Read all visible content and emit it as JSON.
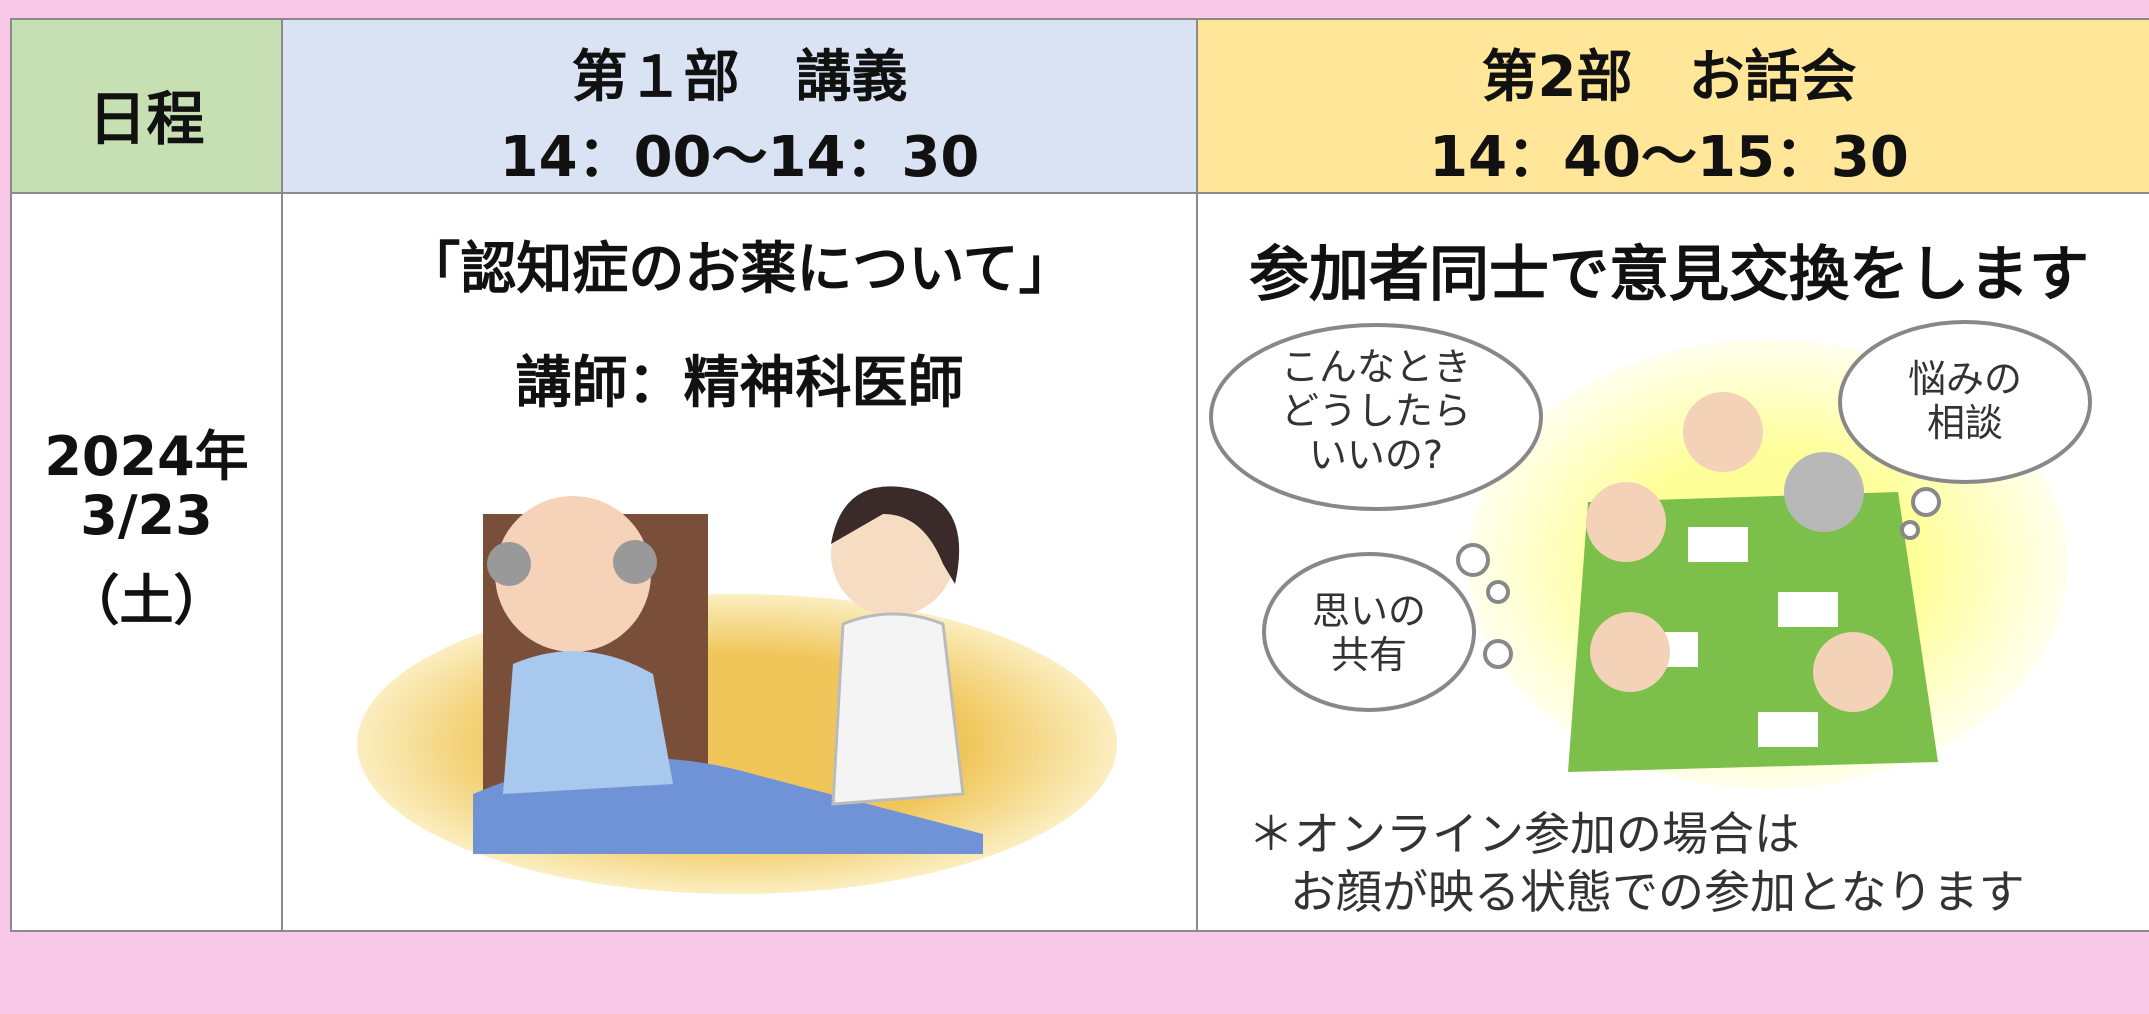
{
  "header": {
    "schedule": "日程",
    "part1": {
      "title": "第１部　講義",
      "time": "14：00～14：30"
    },
    "part2": {
      "title": "第2部　お話会",
      "time": "14：40～15：30"
    }
  },
  "row": {
    "date": [
      "2024年",
      "3/23",
      "（土）"
    ],
    "part1": {
      "topic": "「認知症のお薬について」",
      "lecturer": "講師：精神科医師"
    },
    "part2": {
      "description": "参加者同士で意見交換をします",
      "bubbles": [
        [
          "こんなとき",
          "どうしたら",
          "いいの?"
        ],
        [
          "悩みの",
          "相談"
        ],
        [
          "思いの",
          "共有"
        ]
      ],
      "note": [
        "＊オンライン参加の場合は",
        "お顔が映る状態での参加となります"
      ]
    }
  }
}
